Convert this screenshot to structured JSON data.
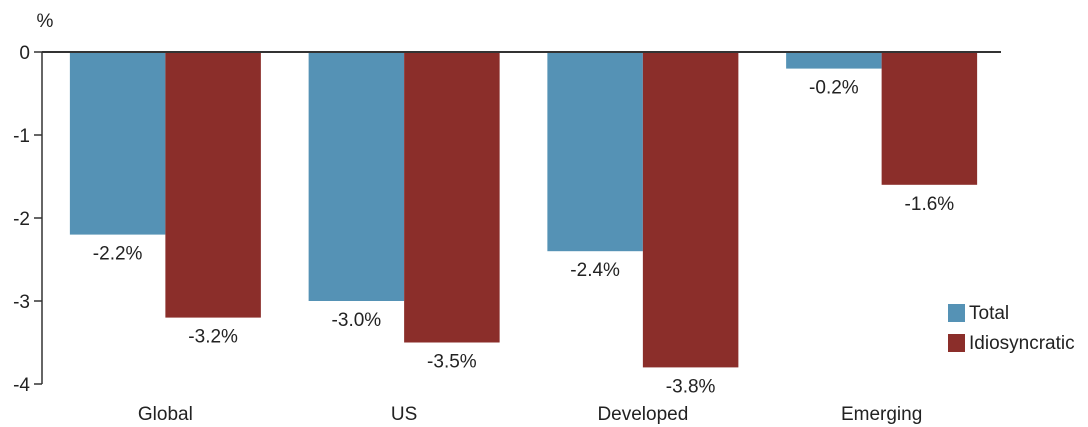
{
  "chart_data": {
    "type": "bar",
    "y_label": "%",
    "categories": [
      "Global",
      "US",
      "Developed",
      "Emerging"
    ],
    "series": [
      {
        "name": "Total",
        "color": "#5592b5",
        "values": [
          -2.2,
          -3.0,
          -2.4,
          -0.2
        ],
        "value_labels": [
          "-2.2%",
          "-3.0%",
          "-2.4%",
          "-0.2%"
        ]
      },
      {
        "name": "Idiosyncratic",
        "color": "#8b2e2a",
        "values": [
          -3.2,
          -3.5,
          -3.8,
          -1.6
        ],
        "value_labels": [
          "-3.2%",
          "-3.5%",
          "-3.8%",
          "-1.6%"
        ]
      }
    ],
    "ylim": [
      -4,
      0
    ],
    "yticks": [
      0,
      -1,
      -2,
      -3,
      -4
    ],
    "legend": "right"
  }
}
